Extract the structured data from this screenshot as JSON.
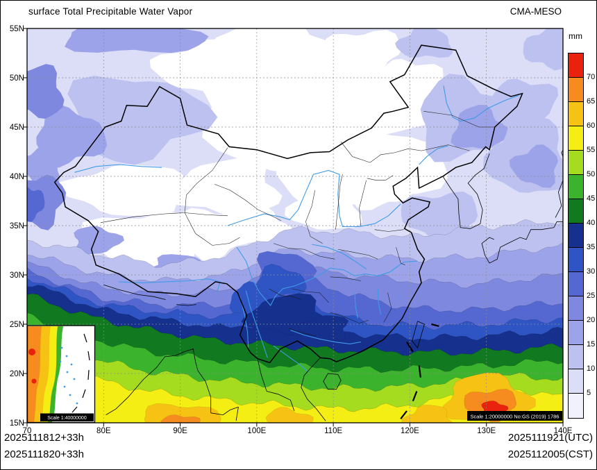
{
  "header": {
    "title": "surface Total Precipitable Water Vapor",
    "model": "CMA-MESO"
  },
  "colorbar": {
    "unit": "mm",
    "ticks": [
      "70",
      "65",
      "60",
      "55",
      "50",
      "45",
      "40",
      "35",
      "30",
      "25",
      "20",
      "15",
      "10",
      "5"
    ],
    "colors_top_to_bottom": [
      "#e8220c",
      "#f68b1f",
      "#f6c213",
      "#f4ee15",
      "#a6dc20",
      "#3cb32d",
      "#117a20",
      "#16308e",
      "#2f55c4",
      "#5568d2",
      "#7e88de",
      "#9ca3e8",
      "#bdc1f0",
      "#dcdef7",
      "#f0f1fb"
    ]
  },
  "axes": {
    "x_ticks": [
      {
        "label": "70",
        "value": 70
      },
      {
        "label": "80E",
        "value": 80
      },
      {
        "label": "90E",
        "value": 90
      },
      {
        "label": "100E",
        "value": 100
      },
      {
        "label": "110E",
        "value": 110
      },
      {
        "label": "120E",
        "value": 120
      },
      {
        "label": "130E",
        "value": 130
      },
      {
        "label": "140E",
        "value": 140
      }
    ],
    "y_ticks": [
      {
        "label": "55N",
        "value": 55
      },
      {
        "label": "50N",
        "value": 50
      },
      {
        "label": "45N",
        "value": 45
      },
      {
        "label": "40N",
        "value": 40
      },
      {
        "label": "35N",
        "value": 35
      },
      {
        "label": "30N",
        "value": 30
      },
      {
        "label": "25N",
        "value": 25
      },
      {
        "label": "20N",
        "value": 20
      },
      {
        "label": "15N",
        "value": 15
      }
    ]
  },
  "map_notes": {
    "main_scale": "Scale 1:20000000 No:GS (2019) 1786",
    "inset_scale": "Scale 1:40000000"
  },
  "footer": {
    "left_line1": "2025111812+33h",
    "left_line2": "2025111820+33h",
    "right_line1": "2025111921(UTC)",
    "right_line2": "2025112005(CST)"
  }
}
